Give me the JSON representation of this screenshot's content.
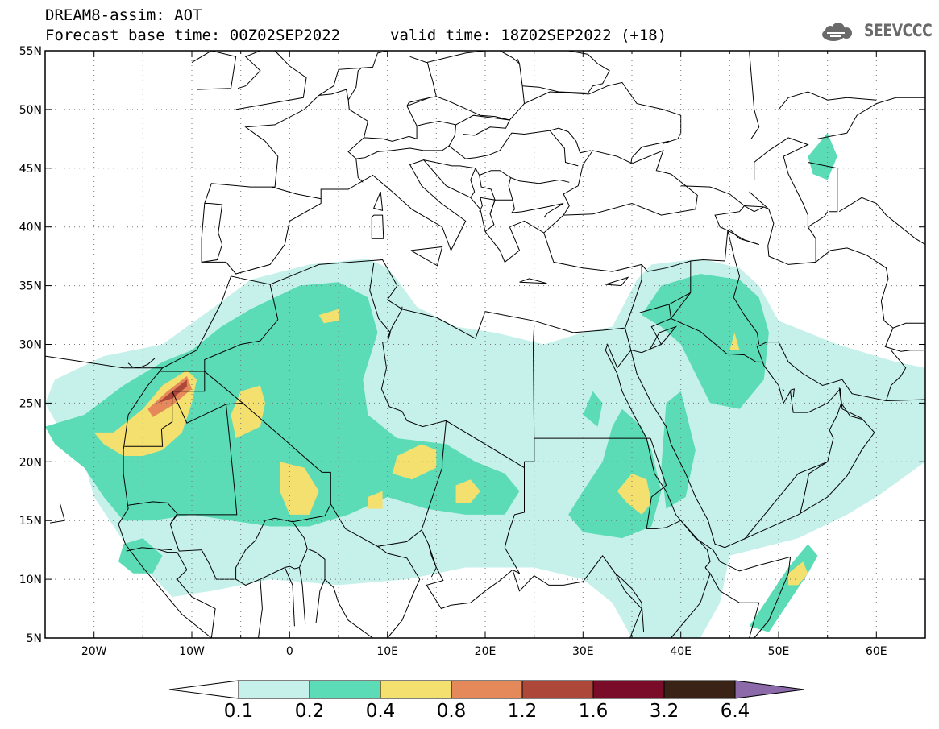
{
  "header": {
    "title": "DREAM8-assim: AOT",
    "base_time_line": "Forecast base time: 00Z02SEP2022",
    "valid_time_line": "valid time: 18Z02SEP2022 (+18)"
  },
  "logo": {
    "text": "SEEVCCC",
    "icon": "cloud-icon",
    "color": "#6a6a6a"
  },
  "map": {
    "lat_range": [
      5,
      55
    ],
    "lon_range": [
      -25,
      65
    ],
    "lat_ticks": [
      "55N",
      "50N",
      "45N",
      "40N",
      "35N",
      "30N",
      "25N",
      "20N",
      "15N",
      "10N",
      "5N"
    ],
    "lon_ticks": [
      "20W",
      "10W",
      "0",
      "10E",
      "20E",
      "30E",
      "40E",
      "50E",
      "60E"
    ],
    "grid": "dotted",
    "ocean_color": "#ffffff",
    "border_color": "#000000"
  },
  "colorbar": {
    "levels": [
      "0.1",
      "0.2",
      "0.4",
      "0.8",
      "1.2",
      "1.6",
      "3.2",
      "6.4"
    ],
    "colors": [
      "#c6f1eb",
      "#5cdcb6",
      "#f4e06f",
      "#e6895a",
      "#ad4739",
      "#7a0c2a",
      "#3a2216",
      "#8c6aaa"
    ],
    "under_color": "#ffffff"
  },
  "field": [
    {
      "level": 1,
      "color": "#c6f1eb",
      "areas": [
        [
          [
            -25,
            25
          ],
          [
            -24,
            27
          ],
          [
            -19,
            29
          ],
          [
            -13,
            30
          ],
          [
            -8,
            33
          ],
          [
            -4,
            35.5
          ],
          [
            2,
            36.8
          ],
          [
            8,
            37.3
          ],
          [
            10,
            36.5
          ],
          [
            11,
            35.5
          ],
          [
            13,
            33.2
          ],
          [
            17,
            31.5
          ],
          [
            21,
            31
          ],
          [
            26,
            30
          ],
          [
            30,
            31
          ],
          [
            33,
            31.5
          ],
          [
            35.5,
            35.5
          ],
          [
            37,
            36.8
          ],
          [
            42,
            37.3
          ],
          [
            46,
            36.5
          ],
          [
            48,
            35
          ],
          [
            50,
            32
          ],
          [
            56,
            30
          ],
          [
            62,
            28.5
          ],
          [
            65,
            28
          ],
          [
            65,
            20
          ],
          [
            60,
            17
          ],
          [
            57,
            15.5
          ],
          [
            52,
            13.5
          ],
          [
            45,
            12
          ],
          [
            44,
            8
          ],
          [
            42,
            5
          ],
          [
            35,
            5
          ],
          [
            33,
            8
          ],
          [
            30,
            10
          ],
          [
            25,
            11
          ],
          [
            18,
            11
          ],
          [
            12,
            10
          ],
          [
            5,
            9.5
          ],
          [
            -2,
            10
          ],
          [
            -8,
            9
          ],
          [
            -12,
            8.5
          ],
          [
            -16,
            12
          ],
          [
            -18,
            14.5
          ],
          [
            -20,
            17
          ],
          [
            -21,
            20
          ],
          [
            -23,
            22
          ]
        ]
      ]
    },
    {
      "level": 2,
      "color": "#5cdcb6",
      "areas": [
        [
          [
            -25,
            23
          ],
          [
            -21,
            24
          ],
          [
            -17,
            26.5
          ],
          [
            -13,
            28.5
          ],
          [
            -10,
            29.5
          ],
          [
            -7,
            31.5
          ],
          [
            -4,
            33
          ],
          [
            1,
            35
          ],
          [
            5,
            35.3
          ],
          [
            8,
            34
          ],
          [
            9,
            31
          ],
          [
            7.5,
            27
          ],
          [
            8,
            24
          ],
          [
            11,
            22
          ],
          [
            16,
            21.5
          ],
          [
            19,
            20
          ],
          [
            22,
            19
          ],
          [
            23.5,
            17.5
          ],
          [
            22,
            15.5
          ],
          [
            18,
            15.5
          ],
          [
            14,
            16
          ],
          [
            10,
            17
          ],
          [
            6,
            15.5
          ],
          [
            2,
            14.5
          ],
          [
            -2,
            14.5
          ],
          [
            -6,
            15
          ],
          [
            -10,
            15.5
          ],
          [
            -14,
            15
          ],
          [
            -17,
            15
          ],
          [
            -19,
            17
          ],
          [
            -21,
            19.5
          ],
          [
            -24,
            21.5
          ]
        ],
        [
          [
            -17,
            13
          ],
          [
            -15,
            13.5
          ],
          [
            -13,
            12
          ],
          [
            -14,
            10.5
          ],
          [
            -16,
            10.5
          ],
          [
            -17.5,
            11.5
          ]
        ],
        [
          [
            30,
            14
          ],
          [
            34,
            13.5
          ],
          [
            37,
            14.5
          ],
          [
            38,
            17.5
          ],
          [
            37,
            21
          ],
          [
            36,
            23
          ],
          [
            34,
            24.5
          ],
          [
            33,
            23
          ],
          [
            32,
            20
          ],
          [
            30,
            17.5
          ],
          [
            28.5,
            15.5
          ]
        ],
        [
          [
            36,
            32.5
          ],
          [
            38,
            35
          ],
          [
            42,
            36
          ],
          [
            46,
            35.5
          ],
          [
            48,
            34
          ],
          [
            49,
            31
          ],
          [
            48.5,
            27
          ],
          [
            46,
            24.5
          ],
          [
            43,
            25
          ],
          [
            41.5,
            27.5
          ],
          [
            40,
            30
          ],
          [
            38,
            31.5
          ]
        ],
        [
          [
            38.5,
            25
          ],
          [
            40,
            26
          ],
          [
            41.5,
            21
          ],
          [
            40.5,
            17
          ],
          [
            38.5,
            16
          ],
          [
            38,
            19.5
          ]
        ],
        [
          [
            47,
            6
          ],
          [
            49,
            8.5
          ],
          [
            51,
            11
          ],
          [
            53,
            13
          ],
          [
            54,
            12
          ],
          [
            53,
            10.5
          ],
          [
            51,
            8
          ],
          [
            49,
            5.5
          ]
        ],
        [
          [
            53,
            46
          ],
          [
            55,
            48
          ],
          [
            56,
            46
          ],
          [
            55,
            44
          ],
          [
            53.5,
            44.5
          ]
        ],
        [
          [
            30,
            24
          ],
          [
            31,
            26
          ],
          [
            32,
            25
          ],
          [
            31.5,
            23
          ]
        ]
      ]
    },
    {
      "level": 3,
      "color": "#f4e06f",
      "areas": [
        [
          [
            -20,
            22.5
          ],
          [
            -18,
            22.5
          ],
          [
            -15,
            24.5
          ],
          [
            -13,
            26.5
          ],
          [
            -10.5,
            27.8
          ],
          [
            -9.5,
            27
          ],
          [
            -10,
            25
          ],
          [
            -11,
            22.5
          ],
          [
            -13,
            21
          ],
          [
            -15,
            20.5
          ],
          [
            -17,
            20.5
          ],
          [
            -19,
            21.5
          ]
        ],
        [
          [
            -5.5,
            22
          ],
          [
            -3,
            23
          ],
          [
            -2.5,
            25
          ],
          [
            -3,
            26.5
          ],
          [
            -5,
            26
          ],
          [
            -6,
            24
          ]
        ],
        [
          [
            -1,
            20
          ],
          [
            1.5,
            19.5
          ],
          [
            3,
            17.5
          ],
          [
            2,
            15.5
          ],
          [
            0,
            15.5
          ],
          [
            -1,
            17.5
          ]
        ],
        [
          [
            11,
            20.5
          ],
          [
            13.5,
            21.5
          ],
          [
            15,
            21
          ],
          [
            15,
            19.5
          ],
          [
            12.5,
            18.5
          ],
          [
            10.5,
            19
          ]
        ],
        [
          [
            17,
            18
          ],
          [
            18.5,
            18.5
          ],
          [
            19.5,
            17.5
          ],
          [
            18.5,
            16.5
          ],
          [
            17,
            16.5
          ]
        ],
        [
          [
            8,
            17
          ],
          [
            9.5,
            17.5
          ],
          [
            9.5,
            16
          ],
          [
            8,
            16
          ]
        ],
        [
          [
            33.5,
            17.5
          ],
          [
            35,
            19
          ],
          [
            36.5,
            18.5
          ],
          [
            37,
            16.5
          ],
          [
            36,
            15.5
          ],
          [
            34.5,
            16.5
          ]
        ],
        [
          [
            51,
            10.5
          ],
          [
            52.5,
            11.5
          ],
          [
            53,
            10.5
          ],
          [
            52,
            9.5
          ],
          [
            51,
            9.5
          ]
        ],
        [
          [
            3,
            32.5
          ],
          [
            5,
            33
          ],
          [
            5,
            32
          ],
          [
            3.5,
            31.8
          ]
        ],
        [
          [
            45,
            29.5
          ],
          [
            45.5,
            31
          ],
          [
            46,
            29.5
          ]
        ]
      ]
    },
    {
      "level": 4,
      "color": "#e6895a",
      "areas": [
        [
          [
            -14.5,
            24.5
          ],
          [
            -12.5,
            26
          ],
          [
            -10.5,
            27.3
          ],
          [
            -10,
            26.2
          ],
          [
            -12,
            24.8
          ],
          [
            -14,
            23.8
          ]
        ]
      ]
    },
    {
      "level": 5,
      "color": "#ad4739",
      "areas": [
        [
          [
            -13.5,
            25
          ],
          [
            -12,
            26
          ],
          [
            -10.5,
            27
          ],
          [
            -10.5,
            26.4
          ],
          [
            -12,
            25.4
          ]
        ]
      ]
    }
  ]
}
